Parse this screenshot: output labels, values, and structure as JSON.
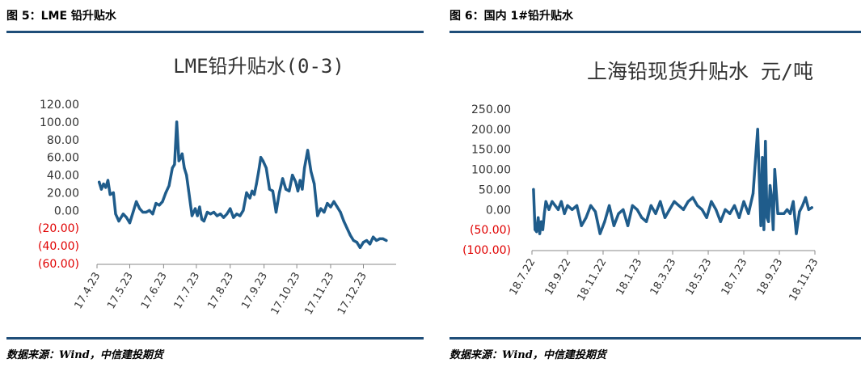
{
  "captions": {
    "left": "图 5：LME 铅升贴水",
    "right": "图 6：国内 1#铅升贴水"
  },
  "sources": {
    "left": "数据来源：Wind，中信建投期货",
    "right": "数据来源：Wind，中信建投期货"
  },
  "colors": {
    "series": "#1f5c8b",
    "rule": "#1f4e79",
    "negative_label": "#e00000",
    "positive_label": "#333333"
  },
  "chart_data": [
    {
      "type": "line",
      "title": "LME铅升贴水(0-3)",
      "xlabel": "",
      "ylabel": "",
      "ylim": [
        -60,
        120
      ],
      "y_ticks": [
        {
          "value": 120,
          "label": "120.00"
        },
        {
          "value": 100,
          "label": "100.00"
        },
        {
          "value": 80,
          "label": "80.00"
        },
        {
          "value": 60,
          "label": "60.00"
        },
        {
          "value": 40,
          "label": "40.00"
        },
        {
          "value": 20,
          "label": "20.00"
        },
        {
          "value": 0,
          "label": "0.00"
        },
        {
          "value": -20,
          "label": "(20.00)"
        },
        {
          "value": -40,
          "label": "(40.00)"
        },
        {
          "value": -60,
          "label": "(60.00)"
        }
      ],
      "x_range": [
        "2017-04-01",
        "2017-12-31"
      ],
      "x_ticks": [
        {
          "date": "2017-04-01",
          "label": "17.4.23"
        },
        {
          "date": "2017-05-01",
          "label": "17.5.23"
        },
        {
          "date": "2017-06-01",
          "label": "17.6.23"
        },
        {
          "date": "2017-07-01",
          "label": "17.7.23"
        },
        {
          "date": "2017-08-01",
          "label": "17.8.23"
        },
        {
          "date": "2017-09-01",
          "label": "17.9.23"
        },
        {
          "date": "2017-10-01",
          "label": "17.10.23"
        },
        {
          "date": "2017-11-01",
          "label": "17.11.23"
        },
        {
          "date": "2017-12-01",
          "label": "17.12.23"
        }
      ],
      "grid": false,
      "legend": "none",
      "series": [
        {
          "x": [
            "2017-04-03",
            "2017-04-05",
            "2017-04-07",
            "2017-04-09",
            "2017-04-11",
            "2017-04-13",
            "2017-04-16",
            "2017-04-18",
            "2017-04-21",
            "2017-04-25",
            "2017-04-28",
            "2017-05-01",
            "2017-05-04",
            "2017-05-07",
            "2017-05-10",
            "2017-05-13",
            "2017-05-16",
            "2017-05-19",
            "2017-05-22",
            "2017-05-25",
            "2017-05-28",
            "2017-05-31",
            "2017-06-03",
            "2017-06-06",
            "2017-06-09",
            "2017-06-11",
            "2017-06-13",
            "2017-06-15",
            "2017-06-16",
            "2017-06-18",
            "2017-06-20",
            "2017-06-22",
            "2017-06-24",
            "2017-06-27",
            "2017-06-30",
            "2017-07-02",
            "2017-07-04",
            "2017-07-06",
            "2017-07-08",
            "2017-07-11",
            "2017-07-14",
            "2017-07-17",
            "2017-07-20",
            "2017-07-23",
            "2017-07-26",
            "2017-07-29",
            "2017-08-01",
            "2017-08-04",
            "2017-08-07",
            "2017-08-10",
            "2017-08-13",
            "2017-08-16",
            "2017-08-19",
            "2017-08-21",
            "2017-08-23",
            "2017-08-25",
            "2017-08-27",
            "2017-08-29",
            "2017-08-31",
            "2017-09-03",
            "2017-09-06",
            "2017-09-09",
            "2017-09-12",
            "2017-09-15",
            "2017-09-18",
            "2017-09-21",
            "2017-09-24",
            "2017-09-27",
            "2017-09-30",
            "2017-10-02",
            "2017-10-04",
            "2017-10-06",
            "2017-10-08",
            "2017-10-11",
            "2017-10-14",
            "2017-10-17",
            "2017-10-20",
            "2017-10-23",
            "2017-10-26",
            "2017-10-29",
            "2017-11-01",
            "2017-11-04",
            "2017-11-07",
            "2017-11-10",
            "2017-11-13",
            "2017-11-16",
            "2017-11-19",
            "2017-11-22",
            "2017-11-25",
            "2017-11-28",
            "2017-12-01",
            "2017-12-04",
            "2017-12-07",
            "2017-12-10",
            "2017-12-13",
            "2017-12-16",
            "2017-12-19",
            "2017-12-22"
          ],
          "values": [
            32,
            24,
            30,
            26,
            34,
            18,
            20,
            -4,
            -12,
            -4,
            -8,
            -14,
            -2,
            10,
            2,
            -2,
            -2,
            0,
            -4,
            8,
            6,
            10,
            20,
            28,
            48,
            52,
            100,
            56,
            58,
            64,
            48,
            40,
            22,
            -6,
            2,
            -6,
            4,
            -10,
            -12,
            -2,
            -4,
            -2,
            -6,
            -4,
            -8,
            -4,
            2,
            -8,
            -4,
            -6,
            0,
            20,
            14,
            22,
            18,
            30,
            44,
            60,
            56,
            48,
            24,
            22,
            -2,
            20,
            36,
            24,
            22,
            40,
            32,
            22,
            34,
            24,
            48,
            68,
            44,
            30,
            -6,
            2,
            -2,
            8,
            4,
            10,
            4,
            -2,
            -12,
            -20,
            -28,
            -34,
            -36,
            -42,
            -36,
            -34,
            -38,
            -30,
            -34,
            -32,
            -32,
            -34
          ]
        }
      ]
    },
    {
      "type": "line",
      "title": "上海铅现货升贴水 元/吨",
      "xlabel": "",
      "ylabel": "",
      "ylim": [
        -100,
        250
      ],
      "y_ticks": [
        {
          "value": 250,
          "label": "250.00"
        },
        {
          "value": 200,
          "label": "200.00"
        },
        {
          "value": 150,
          "label": "150.00"
        },
        {
          "value": 100,
          "label": "100.00"
        },
        {
          "value": 50,
          "label": "50.00"
        },
        {
          "value": 0,
          "label": "0.00"
        },
        {
          "value": -50,
          "label": "(50.00)"
        },
        {
          "value": -100,
          "label": "(100.00)"
        }
      ],
      "x_range": [
        "2018-07-01",
        "2018-12-31"
      ],
      "x_ticks": [
        {
          "date": "2018-07-01",
          "label": "18.7.22"
        },
        {
          "date": "2018-07-24",
          "label": "18.9.22"
        },
        {
          "date": "2018-08-16",
          "label": "18.11.22"
        },
        {
          "date": "2018-09-08",
          "label": "18.1.23"
        },
        {
          "date": "2018-09-30",
          "label": "18.3.23"
        },
        {
          "date": "2018-10-23",
          "label": "18.5.23"
        },
        {
          "date": "2018-11-15",
          "label": "18.7.23"
        },
        {
          "date": "2018-12-08",
          "label": "18.9.23"
        },
        {
          "date": "2018-12-31",
          "label": "18.11.23"
        }
      ],
      "grid": false,
      "legend": "none",
      "series": [
        {
          "x": [
            "2018-07-02",
            "2018-07-03",
            "2018-07-04",
            "2018-07-05",
            "2018-07-06",
            "2018-07-07",
            "2018-07-08",
            "2018-07-09",
            "2018-07-10",
            "2018-07-12",
            "2018-07-14",
            "2018-07-16",
            "2018-07-18",
            "2018-07-20",
            "2018-07-22",
            "2018-07-24",
            "2018-07-27",
            "2018-07-30",
            "2018-08-02",
            "2018-08-05",
            "2018-08-08",
            "2018-08-11",
            "2018-08-14",
            "2018-08-17",
            "2018-08-20",
            "2018-08-23",
            "2018-08-26",
            "2018-08-29",
            "2018-09-01",
            "2018-09-04",
            "2018-09-07",
            "2018-09-10",
            "2018-09-13",
            "2018-09-16",
            "2018-09-19",
            "2018-09-22",
            "2018-09-25",
            "2018-09-28",
            "2018-10-01",
            "2018-10-04",
            "2018-10-07",
            "2018-10-10",
            "2018-10-13",
            "2018-10-16",
            "2018-10-19",
            "2018-10-22",
            "2018-10-25",
            "2018-10-28",
            "2018-10-31",
            "2018-11-03",
            "2018-11-06",
            "2018-11-09",
            "2018-11-12",
            "2018-11-15",
            "2018-11-18",
            "2018-11-21",
            "2018-11-24",
            "2018-11-26",
            "2018-11-27",
            "2018-11-28",
            "2018-11-29",
            "2018-11-30",
            "2018-12-01",
            "2018-12-02",
            "2018-12-03",
            "2018-12-04",
            "2018-12-05",
            "2018-12-07",
            "2018-12-09",
            "2018-12-11",
            "2018-12-13",
            "2018-12-15",
            "2018-12-17",
            "2018-12-19",
            "2018-12-21",
            "2018-12-23",
            "2018-12-25",
            "2018-12-27",
            "2018-12-29"
          ],
          "values": [
            50,
            -50,
            -55,
            -20,
            -60,
            -30,
            -50,
            -10,
            20,
            0,
            20,
            10,
            0,
            20,
            -10,
            10,
            0,
            10,
            -40,
            -20,
            10,
            -5,
            -60,
            -30,
            10,
            -40,
            -10,
            0,
            -40,
            10,
            0,
            -20,
            -30,
            10,
            -10,
            20,
            -20,
            0,
            20,
            10,
            0,
            20,
            30,
            10,
            0,
            -20,
            20,
            0,
            -30,
            0,
            -10,
            10,
            -20,
            20,
            -10,
            40,
            200,
            -40,
            130,
            -50,
            170,
            -20,
            -30,
            60,
            30,
            -50,
            100,
            -10,
            -10,
            -10,
            0,
            -10,
            20,
            -60,
            -5,
            10,
            30,
            0,
            5
          ]
        }
      ]
    }
  ]
}
